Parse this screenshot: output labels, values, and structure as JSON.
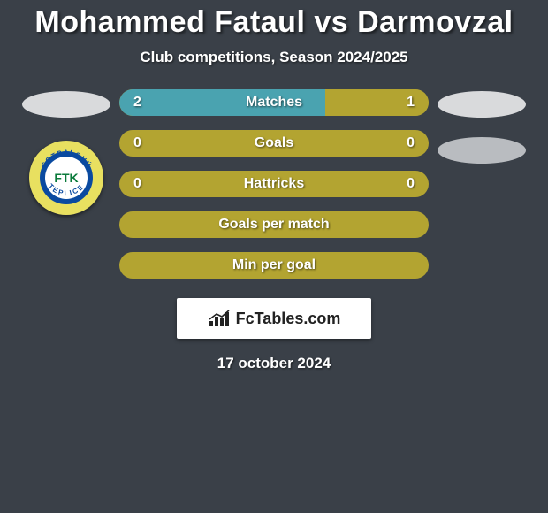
{
  "title": "Mohammed Fataul vs Darmovzal",
  "subtitle": "Club competitions, Season 2024/2025",
  "date": "17 october 2024",
  "brand": "FcTables.com",
  "colors": {
    "background": "#3a4048",
    "left_fill": "#4aa3b0",
    "right_fill": "#b3a431",
    "row_base": "#b3a431",
    "oval_left": "#d9dadc",
    "oval_right": "#b9bcc0",
    "badge_outer": "#e8e060",
    "badge_ring": "#0a4aa0",
    "badge_inner": "#ffffff",
    "badge_text": "#0a7a3a"
  },
  "badge": {
    "top_text": "FOTBALOVÝ",
    "bottom_text": "TEPLICE",
    "center_text": "FTK"
  },
  "rows": [
    {
      "label": "Matches",
      "left": "2",
      "right": "1",
      "left_pct": 66.7,
      "right_pct": 33.3
    },
    {
      "label": "Goals",
      "left": "0",
      "right": "0",
      "left_pct": 0,
      "right_pct": 0
    },
    {
      "label": "Hattricks",
      "left": "0",
      "right": "0",
      "left_pct": 0,
      "right_pct": 0
    },
    {
      "label": "Goals per match",
      "left": "",
      "right": "",
      "left_pct": 0,
      "right_pct": 0
    },
    {
      "label": "Min per goal",
      "left": "",
      "right": "",
      "left_pct": 0,
      "right_pct": 0
    }
  ]
}
